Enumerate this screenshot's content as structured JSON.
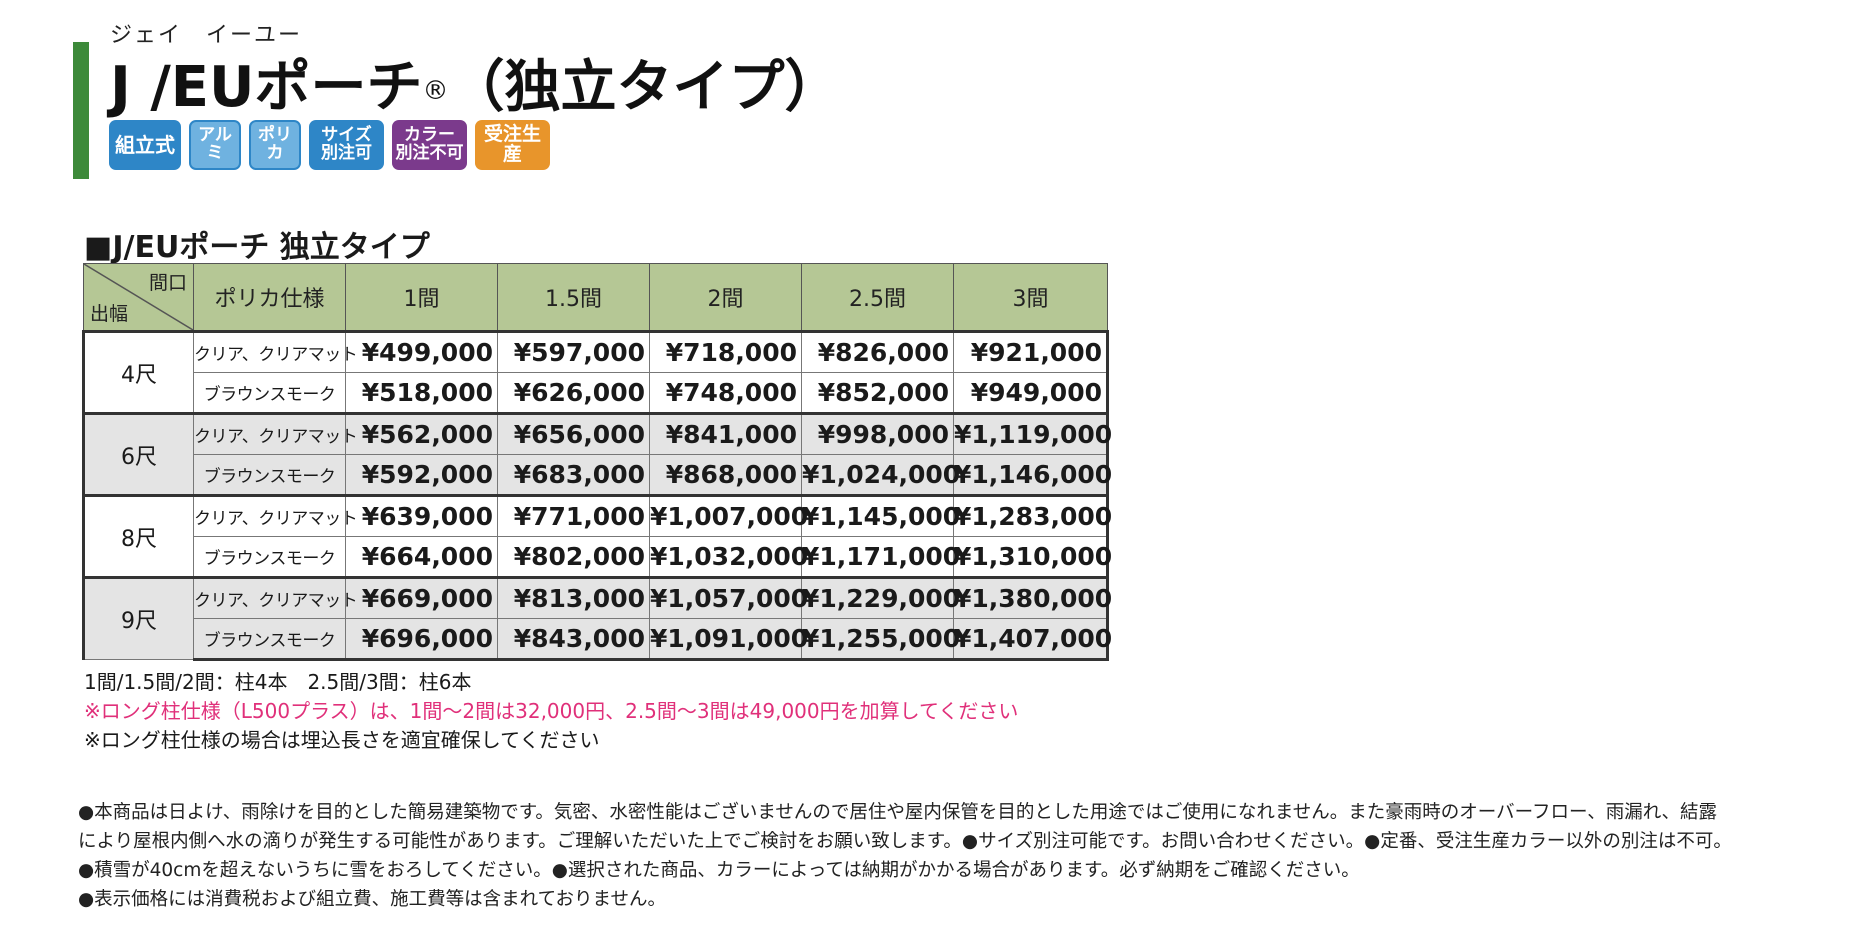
{
  "header": {
    "ruby": "ジェイ　イーユー",
    "title": "J /EUポーチ",
    "reg_mark": "®",
    "subtitle": "（独立タイプ）"
  },
  "badges": [
    {
      "line1": "組立式",
      "line2": "",
      "color": "#2e86c7"
    },
    {
      "line1": "アルミ",
      "line2": "",
      "color": "#6fb2e0"
    },
    {
      "line1": "ポリカ",
      "line2": "",
      "color": "#6fb2e0"
    },
    {
      "line1": "サイズ",
      "line2": "別注可",
      "color": "#2e86c7"
    },
    {
      "line1": "カラー",
      "line2": "別注不可",
      "color": "#7b3a8c"
    },
    {
      "line1": "受注生産",
      "line2": "",
      "color": "#e8952b"
    }
  ],
  "section_title": "■J/EUポーチ 独立タイプ",
  "table": {
    "corner_top": "間口",
    "corner_bottom": "出幅",
    "spec_header": "ポリカ仕様",
    "columns": [
      "1間",
      "1.5間",
      "2間",
      "2.5間",
      "3間"
    ],
    "groups": [
      {
        "size": "4尺",
        "rows": [
          {
            "spec": "クリア、クリアマット",
            "prices": [
              "¥499,000",
              "¥597,000",
              "¥718,000",
              "¥826,000",
              "¥921,000"
            ]
          },
          {
            "spec": "ブラウンスモーク",
            "prices": [
              "¥518,000",
              "¥626,000",
              "¥748,000",
              "¥852,000",
              "¥949,000"
            ]
          }
        ]
      },
      {
        "size": "6尺",
        "rows": [
          {
            "spec": "クリア、クリアマット",
            "prices": [
              "¥562,000",
              "¥656,000",
              "¥841,000",
              "¥998,000",
              "¥1,119,000"
            ]
          },
          {
            "spec": "ブラウンスモーク",
            "prices": [
              "¥592,000",
              "¥683,000",
              "¥868,000",
              "¥1,024,000",
              "¥1,146,000"
            ]
          }
        ]
      },
      {
        "size": "8尺",
        "rows": [
          {
            "spec": "クリア、クリアマット",
            "prices": [
              "¥639,000",
              "¥771,000",
              "¥1,007,000",
              "¥1,145,000",
              "¥1,283,000"
            ]
          },
          {
            "spec": "ブラウンスモーク",
            "prices": [
              "¥664,000",
              "¥802,000",
              "¥1,032,000",
              "¥1,171,000",
              "¥1,310,000"
            ]
          }
        ]
      },
      {
        "size": "9尺",
        "rows": [
          {
            "spec": "クリア、クリアマット",
            "prices": [
              "¥669,000",
              "¥813,000",
              "¥1,057,000",
              "¥1,229,000",
              "¥1,380,000"
            ]
          },
          {
            "spec": "ブラウンスモーク",
            "prices": [
              "¥696,000",
              "¥843,000",
              "¥1,091,000",
              "¥1,255,000",
              "¥1,407,000"
            ]
          }
        ]
      }
    ]
  },
  "notes": {
    "posts": "1間/1.5間/2間：柱4本　2.5間/3間：柱6本",
    "long_post_price": "※ロング柱仕様（L500プラス）は、1間～2間は32,000円、2.5間～3間は49,000円を加算してください",
    "long_post_burial": "※ロング柱仕様の場合は埋込長さを適宜確保してください"
  },
  "disclaimer": [
    "●本商品は日よけ、雨除けを目的とした簡易建築物です。気密、水密性能はございませんので居住や屋内保管を目的とした用途ではご使用になれません。また豪雨時のオーバーフロー、雨漏れ、結露",
    "により屋根内側へ水の滴りが発生する可能性があります。ご理解いただいた上でご検討をお願い致します。●サイズ別注可能です。お問い合わせください。●定番、受注生産カラー以外の別注は不可。",
    "●積雪が40cmを超えないうちに雪をおろしてください。●選択された商品、カラーによっては納期がかかる場合があります。必ず納期をご確認ください。",
    "●表示価格には消費税および組立費、施工費等は含まれておりません。"
  ]
}
